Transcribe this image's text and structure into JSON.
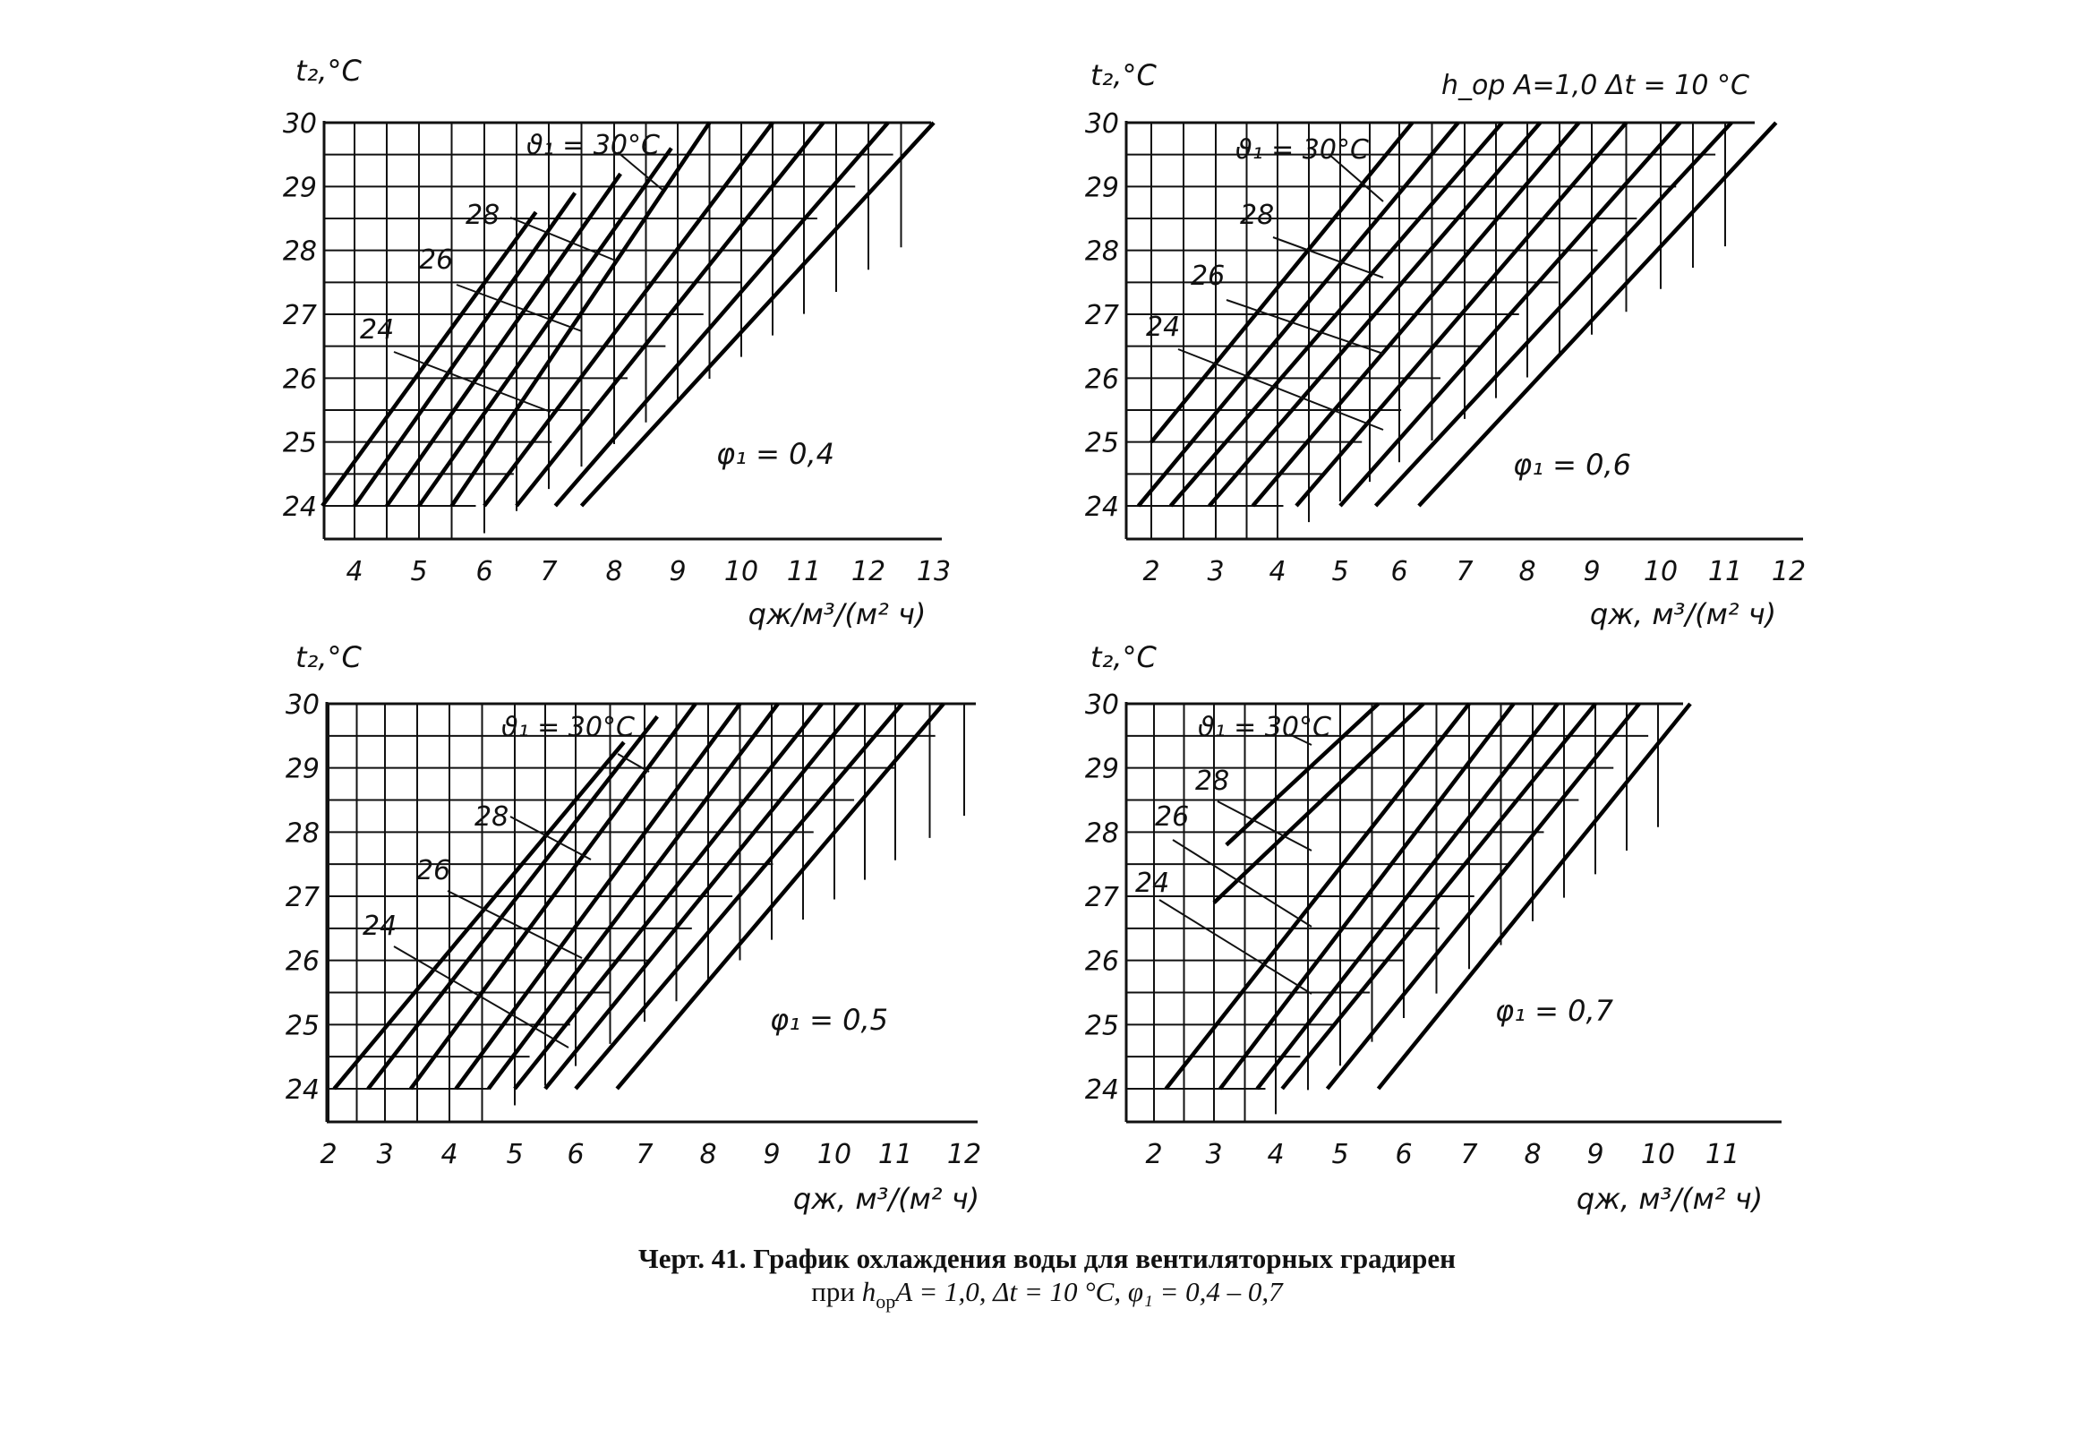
{
  "header_note": "h_ор A=1,0  Δt = 10 °C",
  "caption": {
    "line1": "Черт. 41. График охлаждения воды для вентиляторных градирен",
    "line2_prefix": "при ",
    "line2_h": "h",
    "line2_sub": "ор",
    "line2_rest": "A = 1,0, Δt = 10 °C, φ₁ = 0,4 – 0,7"
  },
  "chart_data": [
    {
      "type": "line",
      "title": "",
      "ylabel": "t₂,°C",
      "xlabel": "qж/м³/(м² ч)",
      "xlim": [
        3.5,
        13.2
      ],
      "ylim": [
        23.5,
        30
      ],
      "xticks": [
        4,
        5,
        6,
        7,
        8,
        9,
        10,
        11,
        12,
        13
      ],
      "yticks": [
        24,
        25,
        26,
        27,
        28,
        29,
        30
      ],
      "grid": true,
      "annotation": "φ₁ = 0,4",
      "curve_labels": [
        "ϑ₁ = 30°C",
        "28",
        "26",
        "24"
      ],
      "series": [
        {
          "x": [
            3.5,
            6.8
          ],
          "y": [
            24.0,
            28.6
          ]
        },
        {
          "x": [
            4.0,
            7.4
          ],
          "y": [
            24.0,
            28.9
          ]
        },
        {
          "x": [
            4.5,
            8.1
          ],
          "y": [
            24.0,
            29.2
          ]
        },
        {
          "x": [
            5.0,
            8.9
          ],
          "y": [
            24.0,
            29.6
          ]
        },
        {
          "x": [
            5.5,
            9.5
          ],
          "y": [
            24.0,
            30.0
          ]
        },
        {
          "x": [
            6.0,
            10.5
          ],
          "y": [
            24.0,
            30.0
          ]
        },
        {
          "x": [
            6.5,
            11.3
          ],
          "y": [
            24.0,
            30.0
          ]
        },
        {
          "x": [
            7.1,
            12.3
          ],
          "y": [
            24.0,
            30.0
          ]
        },
        {
          "x": [
            7.5,
            13.0
          ],
          "y": [
            24.0,
            30.0
          ]
        }
      ]
    },
    {
      "type": "line",
      "title": "",
      "ylabel": "t₂,°C",
      "xlabel": "qж, м³/(м² ч)",
      "xlim": [
        1.7,
        12.3
      ],
      "ylim": [
        23.5,
        30
      ],
      "xticks": [
        2,
        3,
        4,
        5,
        6,
        7,
        8,
        9,
        10,
        11,
        12
      ],
      "yticks": [
        24,
        25,
        26,
        27,
        28,
        29,
        30
      ],
      "grid": true,
      "annotation": "φ₁ = 0,6",
      "curve_labels": [
        "ϑ₁ = 30°C",
        "28",
        "26",
        "24"
      ],
      "series": [
        {
          "x": [
            2.0,
            6.2
          ],
          "y": [
            25.0,
            30.0
          ]
        },
        {
          "x": [
            1.8,
            6.9
          ],
          "y": [
            24.0,
            30.0
          ]
        },
        {
          "x": [
            2.3,
            7.6
          ],
          "y": [
            24.0,
            30.0
          ]
        },
        {
          "x": [
            2.9,
            8.2
          ],
          "y": [
            24.0,
            30.0
          ]
        },
        {
          "x": [
            3.6,
            8.8
          ],
          "y": [
            24.0,
            30.0
          ]
        },
        {
          "x": [
            4.3,
            9.5
          ],
          "y": [
            24.0,
            30.0
          ]
        },
        {
          "x": [
            5.0,
            10.3
          ],
          "y": [
            24.0,
            30.0
          ]
        },
        {
          "x": [
            5.6,
            11.1
          ],
          "y": [
            24.0,
            30.0
          ]
        },
        {
          "x": [
            6.3,
            11.8
          ],
          "y": [
            24.0,
            30.0
          ]
        }
      ]
    },
    {
      "type": "line",
      "title": "",
      "ylabel": "t₂,°C",
      "xlabel": "qж, м³/(м² ч)",
      "xlim": [
        2.0,
        12.3
      ],
      "ylim": [
        23.5,
        30
      ],
      "xticks": [
        2,
        3,
        4,
        5,
        6,
        7,
        8,
        9,
        10,
        11,
        12
      ],
      "yticks": [
        24,
        25,
        26,
        27,
        28,
        29,
        30
      ],
      "grid": true,
      "annotation": "φ₁ = 0,5",
      "curve_labels": [
        "ϑ₁ = 30°C",
        "28",
        "26",
        "24"
      ],
      "series": [
        {
          "x": [
            2.1,
            6.7
          ],
          "y": [
            24.0,
            29.4
          ]
        },
        {
          "x": [
            2.7,
            7.2
          ],
          "y": [
            24.0,
            29.8
          ]
        },
        {
          "x": [
            3.4,
            7.8
          ],
          "y": [
            24.0,
            30.0
          ]
        },
        {
          "x": [
            4.1,
            8.5
          ],
          "y": [
            24.0,
            30.0
          ]
        },
        {
          "x": [
            4.6,
            9.1
          ],
          "y": [
            24.0,
            30.0
          ]
        },
        {
          "x": [
            5.0,
            9.8
          ],
          "y": [
            24.0,
            30.0
          ]
        },
        {
          "x": [
            5.5,
            10.4
          ],
          "y": [
            24.0,
            30.0
          ]
        },
        {
          "x": [
            6.0,
            11.1
          ],
          "y": [
            24.0,
            30.0
          ]
        },
        {
          "x": [
            6.6,
            11.7
          ],
          "y": [
            24.0,
            30.0
          ]
        }
      ]
    },
    {
      "type": "line",
      "title": "",
      "ylabel": "t₂,°C",
      "xlabel": "qж, м³/(м² ч)",
      "xlim": [
        1.6,
        12.0
      ],
      "ylim": [
        23.5,
        30
      ],
      "xticks": [
        2,
        3,
        4,
        5,
        6,
        7,
        8,
        9,
        10,
        11
      ],
      "yticks": [
        24,
        25,
        26,
        27,
        28,
        29,
        30
      ],
      "grid": true,
      "annotation": "φ₁ = 0,7",
      "curve_labels": [
        "ϑ₁ = 30°C",
        "28",
        "26",
        "24"
      ],
      "series": [
        {
          "x": [
            3.2,
            5.6
          ],
          "y": [
            27.8,
            30.0
          ]
        },
        {
          "x": [
            3.0,
            6.3
          ],
          "y": [
            26.9,
            30.0
          ]
        },
        {
          "x": [
            2.2,
            7.0
          ],
          "y": [
            24.0,
            30.0
          ]
        },
        {
          "x": [
            3.1,
            7.7
          ],
          "y": [
            24.0,
            30.0
          ]
        },
        {
          "x": [
            3.7,
            8.4
          ],
          "y": [
            24.0,
            30.0
          ]
        },
        {
          "x": [
            4.1,
            9.0
          ],
          "y": [
            24.0,
            30.0
          ]
        },
        {
          "x": [
            4.8,
            9.7
          ],
          "y": [
            24.0,
            30.0
          ]
        },
        {
          "x": [
            5.6,
            10.5
          ],
          "y": [
            24.0,
            30.0
          ]
        }
      ]
    }
  ]
}
